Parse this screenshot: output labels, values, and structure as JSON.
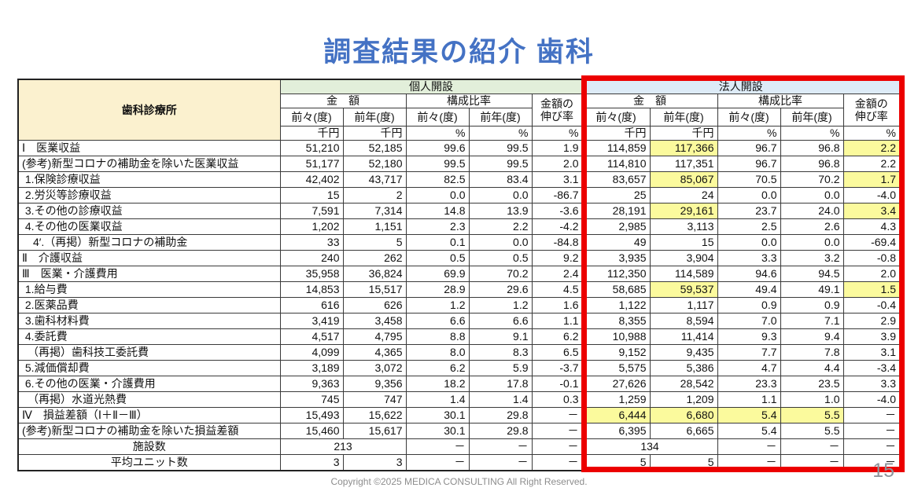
{
  "title": "調査結果の紹介 歯科",
  "footer": {
    "copyright": "Copyright ©2025 MEDICA CONSULTING All Right Reserved.",
    "page_number": "15"
  },
  "colors": {
    "title_blue": "#4472C4",
    "header_cream": "#FBF1CF",
    "group_individual_bg": "#E2EFDA",
    "group_corporate_bg": "#DDEBF7",
    "highlight_yellow": "#FBFA9D",
    "highlight_box_red": "#EC0000"
  },
  "table": {
    "header": {
      "row_header": "歯科診療所",
      "group_individual": "個人開設",
      "group_corporate": "法人開設",
      "amount": "金　額",
      "ratio": "構成比率",
      "growth": "金額の\n伸び率",
      "prev2": "前々(度)",
      "prev1": "前年(度)",
      "unit_thousand_yen": "千円",
      "unit_percent": "%"
    },
    "rows": [
      {
        "label": "Ⅰ　医業収益",
        "cells": [
          "51,210",
          "52,185",
          "99.6",
          "99.5",
          "1.9",
          "114,859",
          {
            "t": "117,366",
            "hl": true
          },
          "96.7",
          "96.8",
          {
            "t": "2.2",
            "hl": true
          }
        ]
      },
      {
        "label": "(参考)新型コロナの補助金を除いた医業収益",
        "cells": [
          "51,177",
          "52,180",
          "99.5",
          "99.5",
          "2.0",
          "114,810",
          "117,351",
          "96.7",
          "96.8",
          "2.2"
        ]
      },
      {
        "label": " 1.保険診療収益",
        "cells": [
          "42,402",
          "43,717",
          "82.5",
          "83.4",
          "3.1",
          "83,657",
          {
            "t": "85,067",
            "hl": true
          },
          "70.5",
          "70.2",
          {
            "t": "1.7",
            "hl": true
          }
        ]
      },
      {
        "label": " 2.労災等診療収益",
        "cells": [
          "15",
          "2",
          "0.0",
          "0.0",
          "-86.7",
          "25",
          "24",
          "0.0",
          "0.0",
          "-4.0"
        ]
      },
      {
        "label": " 3.その他の診療収益",
        "cells": [
          "7,591",
          "7,314",
          "14.8",
          "13.9",
          "-3.6",
          "28,191",
          {
            "t": "29,161",
            "hl": true
          },
          "23.7",
          "24.0",
          {
            "t": "3.4",
            "hl": true
          }
        ]
      },
      {
        "label": " 4.その他の医業収益",
        "cells": [
          "1,202",
          "1,151",
          "2.3",
          "2.2",
          "-4.2",
          "2,985",
          "3,113",
          "2.5",
          "2.6",
          "4.3"
        ]
      },
      {
        "label": "　4′.（再掲）新型コロナの補助金",
        "cells": [
          "33",
          "5",
          "0.1",
          "0.0",
          "-84.8",
          "49",
          "15",
          "0.0",
          "0.0",
          "-69.4"
        ]
      },
      {
        "label": "Ⅱ　介護収益",
        "cells": [
          "240",
          "262",
          "0.5",
          "0.5",
          "9.2",
          "3,935",
          "3,904",
          "3.3",
          "3.2",
          "-0.8"
        ]
      },
      {
        "label": "Ⅲ　医業・介護費用",
        "cells": [
          "35,958",
          "36,824",
          "69.9",
          "70.2",
          "2.4",
          "112,350",
          "114,589",
          "94.6",
          "94.5",
          "2.0"
        ]
      },
      {
        "label": " 1.給与費",
        "cells": [
          "14,853",
          "15,517",
          "28.9",
          "29.6",
          "4.5",
          "58,685",
          {
            "t": "59,537",
            "hl": true
          },
          "49.4",
          "49.1",
          {
            "t": "1.5",
            "hl": true
          }
        ]
      },
      {
        "label": " 2.医薬品費",
        "cells": [
          "616",
          "626",
          "1.2",
          "1.2",
          "1.6",
          "1,122",
          "1,117",
          "0.9",
          "0.9",
          "-0.4"
        ]
      },
      {
        "label": " 3.歯科材料費",
        "cells": [
          "3,419",
          "3,458",
          "6.6",
          "6.6",
          "1.1",
          "8,355",
          "8,594",
          "7.0",
          "7.1",
          "2.9"
        ]
      },
      {
        "label": " 4.委託費",
        "cells": [
          "4,517",
          "4,795",
          "8.8",
          "9.1",
          "6.2",
          "10,988",
          "11,414",
          "9.3",
          "9.4",
          "3.9"
        ]
      },
      {
        "label": "　（再掲）歯科技工委託費",
        "cells": [
          "4,099",
          "4,365",
          "8.0",
          "8.3",
          "6.5",
          "9,152",
          "9,435",
          "7.7",
          "7.8",
          "3.1"
        ]
      },
      {
        "label": " 5.減価償却費",
        "cells": [
          "3,189",
          "3,072",
          "6.2",
          "5.9",
          "-3.7",
          "5,575",
          "5,386",
          "4.7",
          "4.4",
          "-3.4"
        ]
      },
      {
        "label": " 6.その他の医業・介護費用",
        "cells": [
          "9,363",
          "9,356",
          "18.2",
          "17.8",
          "-0.1",
          "27,626",
          "28,542",
          "23.3",
          "23.5",
          "3.3"
        ]
      },
      {
        "label": "　（再掲）水道光熱費",
        "cells": [
          "745",
          "747",
          "1.4",
          "1.4",
          "0.3",
          "1,259",
          "1,209",
          "1.1",
          "1.0",
          "-4.0"
        ]
      },
      {
        "label": "Ⅳ　損益差額（Ⅰ＋Ⅱ－Ⅲ）",
        "cells": [
          "15,493",
          "15,622",
          "30.1",
          "29.8",
          "－",
          {
            "t": "6,444",
            "hl": true
          },
          {
            "t": "6,680",
            "hl": true
          },
          {
            "t": "5.4",
            "hl": true
          },
          {
            "t": "5.5",
            "hl": true
          },
          "－"
        ]
      },
      {
        "label": "(参考)新型コロナの補助金を除いた損益差額",
        "cells": [
          "15,460",
          "15,617",
          "30.1",
          "29.8",
          "－",
          "6,395",
          "6,665",
          "5.4",
          "5.5",
          "－"
        ]
      },
      {
        "label": "施設数",
        "center": true,
        "cells": [
          {
            "t": "213",
            "span": 2,
            "center": true
          },
          "－",
          "－",
          "－",
          {
            "t": "134",
            "span": 2,
            "center": true
          },
          "－",
          "－",
          "－"
        ]
      },
      {
        "label": "平均ユニット数",
        "center": true,
        "cells": [
          "3",
          "3",
          "－",
          "－",
          "－",
          "5",
          "5",
          "－",
          "－",
          "－"
        ]
      }
    ]
  }
}
